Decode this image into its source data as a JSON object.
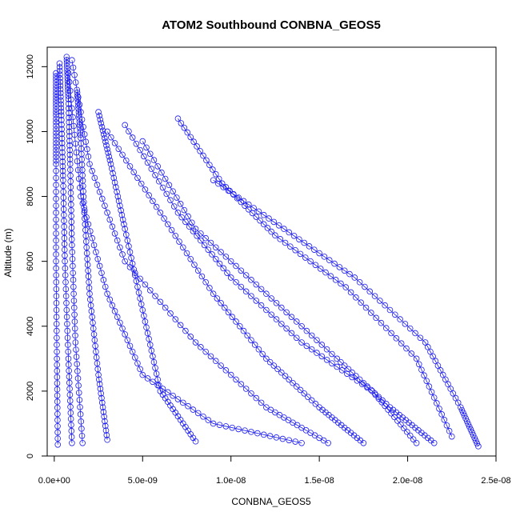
{
  "chart_data": {
    "type": "scatter",
    "title": "ATOM2 Southbound CONBNA_GEOS5",
    "xlabel": "CONBNA_GEOS5",
    "ylabel": "Altitude (m)",
    "xlim": [
      -4e-10,
      2.5e-08
    ],
    "ylim": [
      0,
      12600
    ],
    "xticks": [
      0,
      5e-09,
      1e-08,
      1.5e-08,
      2e-08,
      2.5e-08
    ],
    "xtick_labels": [
      "0.0e+00",
      "5.0e-09",
      "1.0e-08",
      "1.5e-08",
      "2.0e-08",
      "2.5e-08"
    ],
    "yticks": [
      0,
      2000,
      4000,
      6000,
      8000,
      10000,
      12000
    ],
    "ytick_labels": [
      "0",
      "2000",
      "4000",
      "6000",
      "8000",
      "10000",
      "12000"
    ],
    "marker": "open-circle",
    "color": "#1c1cf2",
    "grid": false,
    "legend": "none",
    "series": [
      {
        "x": [
          1.4e-08,
          9e-09,
          5e-09,
          3e-09,
          1.5e-09,
          8e-10
        ],
        "y": [
          400,
          1000,
          2500,
          5000,
          8000,
          11800
        ]
      },
      {
        "x": [
          1.55e-08,
          1.2e-08,
          8e-09,
          4e-09,
          2e-09,
          1e-09
        ],
        "y": [
          400,
          1500,
          3500,
          6000,
          9000,
          12200
        ]
      },
      {
        "x": [
          1.75e-08,
          1.5e-08,
          1.2e-08,
          9e-09,
          6e-09,
          3e-09
        ],
        "y": [
          400,
          1500,
          3000,
          5000,
          7500,
          10000
        ]
      },
      {
        "x": [
          2.05e-08,
          1.8e-08,
          1.4e-08,
          1e-08,
          7e-09,
          4e-09
        ],
        "y": [
          400,
          2000,
          3500,
          5500,
          7500,
          10200
        ]
      },
      {
        "x": [
          2.15e-08,
          1.9e-08,
          1.6e-08,
          1.2e-08,
          8e-09,
          5e-09
        ],
        "y": [
          400,
          1500,
          3000,
          5000,
          7000,
          9700
        ]
      },
      {
        "x": [
          2.4e-08,
          2.3e-08,
          2.1e-08,
          1.7e-08,
          1.3e-08,
          9e-09
        ],
        "y": [
          300,
          1500,
          3500,
          5500,
          7000,
          8500
        ]
      },
      {
        "x": [
          2.25e-08,
          2.05e-08,
          1.65e-08,
          1.25e-08,
          9.5e-09,
          7e-09
        ],
        "y": [
          600,
          3000,
          5200,
          6800,
          8400,
          10400
        ]
      },
      {
        "x": [
          8e-09,
          6e-09,
          5e-09,
          4e-09,
          3.2e-09,
          2.5e-09
        ],
        "y": [
          450,
          2000,
          4500,
          7000,
          9000,
          10600
        ]
      },
      {
        "x": [
          3e-09,
          2.5e-09,
          2e-09,
          1.7e-09,
          1.5e-09,
          1.3e-09
        ],
        "y": [
          500,
          2500,
          5000,
          7500,
          9800,
          11200
        ]
      },
      {
        "x": [
          1e-09,
          8e-10,
          6e-10,
          5e-10,
          4e-10,
          3e-10
        ],
        "y": [
          400,
          3000,
          6000,
          8500,
          10500,
          12100
        ]
      },
      {
        "x": [
          2e-10,
          1.5e-10,
          1e-10,
          1e-10,
          1e-10,
          1e-10
        ],
        "y": [
          350,
          3000,
          6000,
          9000,
          10500,
          11800
        ]
      },
      {
        "x": [
          1.6e-09,
          1.2e-09,
          1e-09,
          9e-10,
          8e-10,
          7e-10
        ],
        "y": [
          400,
          3500,
          6500,
          9000,
          11000,
          12300
        ]
      }
    ]
  }
}
